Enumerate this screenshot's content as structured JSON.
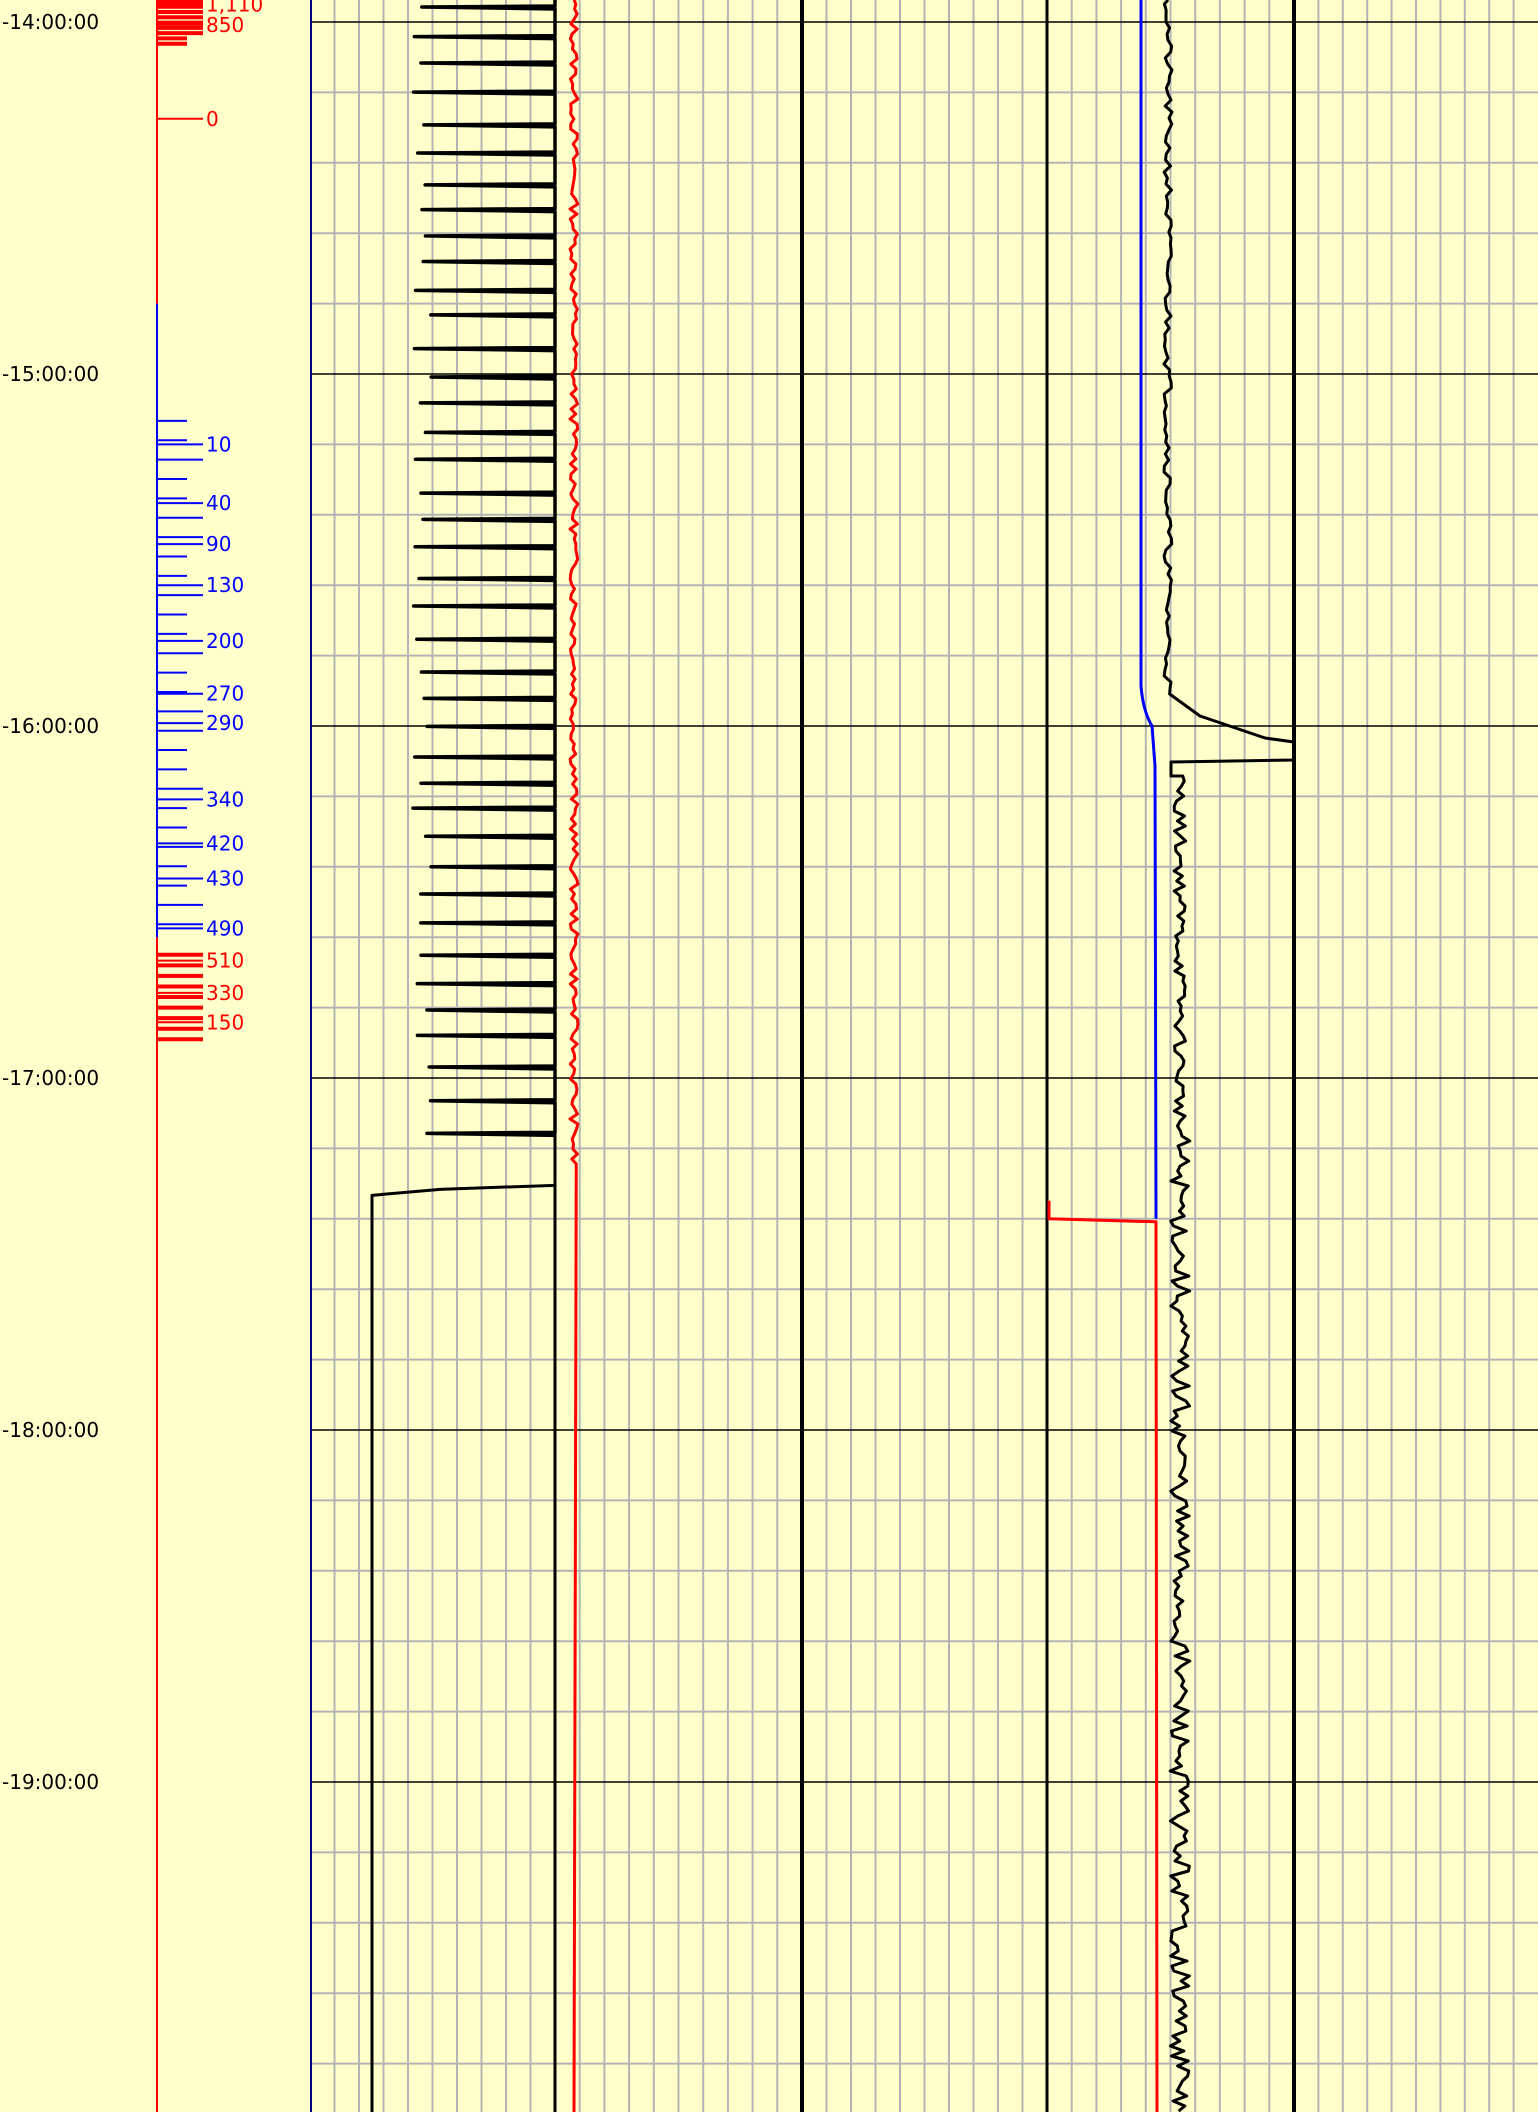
{
  "chart_data": {
    "type": "line",
    "title": "",
    "colors": {
      "background": "#ffffcc",
      "grid_minor": "#b4b4b4",
      "grid_major": "#000000",
      "blue": "#0000ff",
      "red": "#ff0000",
      "navy": "#000080",
      "black": "#000000"
    },
    "y_axis": {
      "kind": "time",
      "range": [
        "13:56:30",
        "20:06:00"
      ],
      "major_ticks": [
        "14:00:00",
        "15:00:00",
        "16:00:00",
        "17:00:00",
        "18:00:00",
        "19:00:00"
      ],
      "tick_labels": [
        "-14:00:00",
        "-15:00:00",
        "-16:00:00",
        "-17:00:00",
        "-18:00:00",
        "-19:00:00"
      ],
      "minor_interval_minutes": 12,
      "direction": "down"
    },
    "depth_markers": {
      "blue_section": [
        "14:48:00",
        "16:36:00"
      ],
      "red_section_top": [
        "13:56:30",
        "14:12:00"
      ],
      "red_section_bottom": [
        "16:36:00",
        "16:55:00"
      ],
      "labels": [
        {
          "time": "13:57:00",
          "text": "1,110",
          "color": "red"
        },
        {
          "time": "14:00:30",
          "text": "850",
          "color": "red"
        },
        {
          "time": "14:16:30",
          "text": "0",
          "color": "red"
        },
        {
          "time": "15:12:00",
          "text": "10",
          "color": "blue"
        },
        {
          "time": "15:22:00",
          "text": "40",
          "color": "blue"
        },
        {
          "time": "15:29:00",
          "text": "90",
          "color": "blue"
        },
        {
          "time": "15:36:00",
          "text": "130",
          "color": "blue"
        },
        {
          "time": "15:45:30",
          "text": "200",
          "color": "blue"
        },
        {
          "time": "15:54:30",
          "text": "270",
          "color": "blue"
        },
        {
          "time": "15:59:30",
          "text": "290",
          "color": "blue"
        },
        {
          "time": "16:12:30",
          "text": "340",
          "color": "blue"
        },
        {
          "time": "16:20:00",
          "text": "420",
          "color": "blue"
        },
        {
          "time": "16:26:00",
          "text": "430",
          "color": "blue"
        },
        {
          "time": "16:34:30",
          "text": "490",
          "color": "blue"
        },
        {
          "time": "16:40:00",
          "text": "510",
          "color": "red"
        },
        {
          "time": "16:45:30",
          "text": "330",
          "color": "red"
        },
        {
          "time": "16:50:30",
          "text": "150",
          "color": "red"
        }
      ]
    },
    "tracks": [
      {
        "name": "",
        "kind": "depth-scale"
      },
      {
        "name": "",
        "kind": "hookload-spikes",
        "color": "black",
        "spike_until": "17:13:00",
        "drop_time": "17:20:00"
      },
      {
        "name": "",
        "kind": "pump",
        "color": "red",
        "shaded_until": "17:15:00"
      },
      {
        "name": "",
        "kind": "flat"
      },
      {
        "name": "",
        "kind": "torque-blue",
        "color": "blue",
        "step_time": "16:00:00",
        "ends": "17:24:00"
      },
      {
        "name": "",
        "kind": "torque-red",
        "color": "red",
        "starts": "17:24:00"
      },
      {
        "name": "",
        "kind": "noise",
        "color": "black",
        "excursion_time": "16:00:00"
      }
    ]
  }
}
